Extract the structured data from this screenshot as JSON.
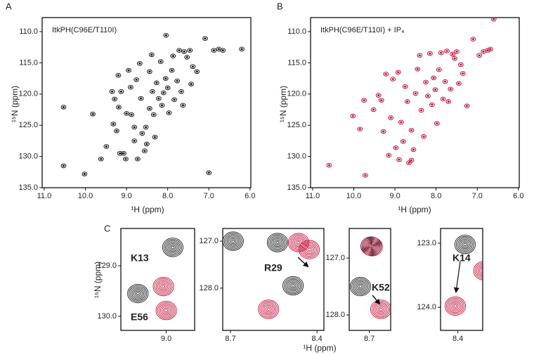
{
  "chart_data": [
    {
      "type": "scatter",
      "panel_label": "A",
      "annotation": "ItkPH(C96E/T110I)",
      "x_label": "¹H (ppm)",
      "y_label": "¹⁵N (ppm)",
      "color": "#1a1a1a",
      "xlim": [
        11.05,
        5.98
      ],
      "ylim": [
        135,
        107.75
      ],
      "xticks": [
        {
          "value": 11,
          "label": "11.0"
        },
        {
          "value": 10,
          "label": "10.0"
        },
        {
          "value": 9,
          "label": "9.0"
        },
        {
          "value": 8,
          "label": "8.0"
        },
        {
          "value": 7,
          "label": "7.0"
        },
        {
          "value": 6,
          "label": "6.0"
        }
      ],
      "yticks": [
        {
          "value": 110,
          "label": "110.0"
        },
        {
          "value": 115,
          "label": "115.0"
        },
        {
          "value": 120,
          "label": "120.0"
        },
        {
          "value": 125,
          "label": "125.0"
        },
        {
          "value": 130,
          "label": "130.0"
        },
        {
          "value": 135,
          "label": "135.0"
        }
      ],
      "x": [
        10.53,
        10.53,
        9.82,
        10.02,
        9.62,
        9.49,
        9.35,
        9.32,
        9.29,
        9.24,
        9.2,
        9.19,
        9.16,
        9.13,
        9.07,
        9.02,
        9.0,
        8.95,
        8.9,
        8.88,
        8.81,
        8.81,
        8.76,
        8.73,
        8.68,
        8.65,
        8.62,
        8.56,
        8.53,
        8.51,
        8.44,
        8.44,
        8.39,
        8.37,
        8.34,
        8.31,
        8.27,
        8.22,
        8.17,
        8.14,
        8.1,
        8.05,
        8.04,
        8.0,
        7.97,
        7.9,
        7.87,
        7.84,
        7.77,
        7.72,
        7.67,
        7.63,
        7.6,
        7.53,
        7.46,
        7.43,
        7.39,
        7.29,
        7.09,
        7.0,
        6.88,
        6.76,
        6.66,
        6.2
      ],
      "values": [
        122.1,
        131.5,
        123.2,
        132.8,
        130.4,
        128.4,
        119.6,
        124.8,
        120.8,
        125.9,
        117.0,
        122.1,
        129.5,
        119.6,
        129.5,
        130.4,
        123.1,
        116.2,
        118.9,
        123.3,
        125.3,
        127.5,
        117.7,
        130.4,
        115.1,
        120.7,
        126.3,
        129.1,
        125.3,
        128.0,
        116.4,
        122.3,
        113.7,
        119.6,
        123.3,
        126.9,
        118.2,
        120.7,
        114.8,
        121.8,
        119.8,
        117.5,
        110.6,
        119.0,
        123.0,
        116.2,
        113.9,
        120.9,
        117.9,
        113.0,
        119.6,
        121.8,
        113.2,
        114.1,
        113.0,
        118.4,
        115.6,
        116.4,
        111.1,
        132.6,
        113.0,
        112.8,
        113.0,
        112.8
      ]
    },
    {
      "type": "scatter",
      "panel_label": "B",
      "annotation": "ItkPH(C96E/T110I) + IP₄",
      "x_label": "¹H (ppm)",
      "y_label": "¹⁵N (ppm)",
      "color": "#c0143c",
      "xlim": [
        11.05,
        5.98
      ],
      "ylim": [
        135,
        107.75
      ],
      "xticks": [
        {
          "value": 11,
          "label": "11.0"
        },
        {
          "value": 10,
          "label": "10.0"
        },
        {
          "value": 9,
          "label": "9.0"
        },
        {
          "value": 8,
          "label": "8.0"
        },
        {
          "value": 7,
          "label": "7.0"
        },
        {
          "value": 6,
          "label": "6.0"
        }
      ],
      "yticks": [
        {
          "value": 110,
          "label": "110.0"
        },
        {
          "value": 115,
          "label": "115.0"
        },
        {
          "value": 120,
          "label": "120.0"
        },
        {
          "value": 125,
          "label": "125.0"
        },
        {
          "value": 130,
          "label": "130.0"
        },
        {
          "value": 135,
          "label": "135.0"
        }
      ],
      "x": [
        10.6,
        9.85,
        9.72,
        9.52,
        9.4,
        9.33,
        9.28,
        9.22,
        9.15,
        9.1,
        9.05,
        8.98,
        8.92,
        8.85,
        8.8,
        8.75,
        8.7,
        8.66,
        8.6,
        8.55,
        8.5,
        8.45,
        8.4,
        8.36,
        8.3,
        8.25,
        8.2,
        8.15,
        8.1,
        8.06,
        8.02,
        7.98,
        7.93,
        7.88,
        7.83,
        7.78,
        7.74,
        7.7,
        7.65,
        7.6,
        7.55,
        7.5,
        7.45,
        7.4,
        7.35,
        7.25,
        7.1,
        6.95,
        6.85,
        6.75,
        6.68,
        6.6,
        10.02,
        9.75,
        8.9,
        8.6
      ],
      "values": [
        131.4,
        125.6,
        133.0,
        122.5,
        120.2,
        121.0,
        126.0,
        116.8,
        129.8,
        123.8,
        117.6,
        128.6,
        116.5,
        124.5,
        127.6,
        118.8,
        121.2,
        131.0,
        125.8,
        128.9,
        119.9,
        116.0,
        113.8,
        122.6,
        126.8,
        118.1,
        120.3,
        113.5,
        121.7,
        117.4,
        119.3,
        124.7,
        116.1,
        113.4,
        120.8,
        118.0,
        113.1,
        121.2,
        119.2,
        113.6,
        114.3,
        113.2,
        118.3,
        115.3,
        116.7,
        121.9,
        111.2,
        113.8,
        113.2,
        113.0,
        112.8,
        108.0,
        123.5,
        121.0,
        130.5,
        130.6
      ]
    },
    {
      "type": "contour",
      "panel_label": "C",
      "x_label": "¹H (ppm)",
      "y_label": "¹⁵N (ppm)",
      "panels": [
        {
          "xlim": [
            9.16,
            8.9
          ],
          "ylim": [
            130.28,
            128.26
          ],
          "xticks": [
            {
              "value": 9,
              "label": "9.0"
            }
          ],
          "yticks": [
            {
              "value": 129,
              "label": "129.0"
            },
            {
              "value": 130,
              "label": "130.0"
            }
          ],
          "labels": [
            "K13",
            "E56"
          ],
          "series": [
            {
              "color": "#1a1a1a",
              "x": [
                8.977,
                9.1
              ],
              "values": [
                128.635,
                129.55
              ]
            },
            {
              "color": "#c0143c",
              "x": [
                9.01,
                9.0
              ],
              "values": [
                129.41,
                129.885
              ]
            }
          ]
        },
        {
          "xlim": [
            8.727,
            8.376
          ],
          "ylim": [
            128.9,
            126.73
          ],
          "xticks": [
            {
              "value": 8.7,
              "label": "8.7"
            },
            {
              "value": 8.4,
              "label": "8.4"
            }
          ],
          "yticks": [
            {
              "value": 127,
              "label": "127.0"
            },
            {
              "value": 128,
              "label": "128.0"
            }
          ],
          "labels": [
            "R29"
          ],
          "series": [
            {
              "color": "#1a1a1a",
              "x": [
                8.537,
                8.483,
                8.691
              ],
              "values": [
                127.03,
                127.95,
                127.0
              ]
            },
            {
              "color": "#c0143c",
              "x": [
                8.464,
                8.427,
                8.568
              ],
              "values": [
                127.03,
                127.18,
                128.45
              ]
            }
          ]
        },
        {
          "xlim": [
            8.77,
            8.626
          ],
          "ylim": [
            128.27,
            126.48
          ],
          "xticks": [
            {
              "value": 8.7,
              "label": "8.7"
            }
          ],
          "yticks": [
            {
              "value": 127,
              "label": "127.0"
            },
            {
              "value": 128,
              "label": "128.0"
            }
          ],
          "labels": [
            "K52"
          ],
          "series": [
            {
              "color": "#1a1a1a",
              "x": [
                8.694,
                8.731
              ],
              "values": [
                126.79,
                127.5
              ]
            },
            {
              "color": "#c0143c",
              "x": [
                8.69,
                8.66
              ],
              "values": [
                126.8,
                127.9
              ]
            }
          ]
        },
        {
          "xlim": [
            8.46,
            8.314
          ],
          "ylim": [
            124.36,
            122.77
          ],
          "xticks": [
            {
              "value": 8.4,
              "label": "8.4"
            }
          ],
          "yticks": [
            {
              "value": 123,
              "label": "123.0"
            },
            {
              "value": 124,
              "label": "124.0"
            }
          ],
          "labels": [
            "K14"
          ],
          "series": [
            {
              "color": "#1a1a1a",
              "x": [
                8.375
              ],
              "values": [
                123.02
              ]
            },
            {
              "color": "#c0143c",
              "x": [
                8.409,
                8.31
              ],
              "values": [
                123.98,
                123.43
              ]
            }
          ]
        }
      ]
    }
  ]
}
